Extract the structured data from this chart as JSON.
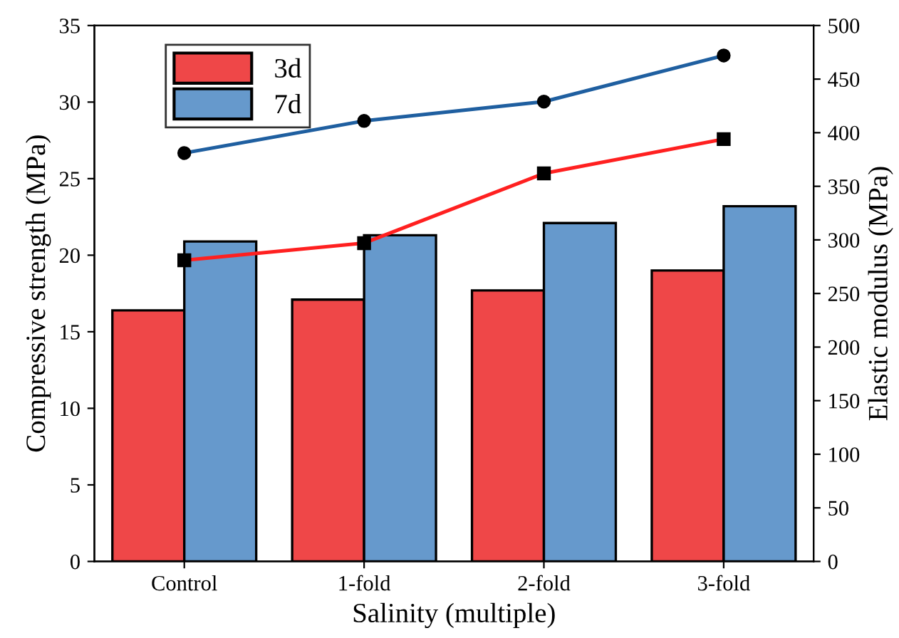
{
  "chart_data": {
    "type": "bar",
    "xlabel": "Salinity (multiple)",
    "ylabel": "Compressive strength (MPa)",
    "y2label": "Elastic modulus (MPa)",
    "categories": [
      "Control",
      "1-fold",
      "2-fold",
      "3-fold"
    ],
    "series": [
      {
        "name": "3d",
        "color": "#ef4748",
        "values": [
          16.4,
          17.1,
          17.7,
          19.0
        ]
      },
      {
        "name": "7d",
        "color": "#6699cc",
        "values": [
          20.9,
          21.3,
          22.1,
          23.2
        ]
      },
      {
        "type": "line",
        "axis": "y2",
        "color": "#ff2020",
        "marker": "square",
        "values": [
          281,
          297,
          362,
          394
        ]
      },
      {
        "type": "line",
        "axis": "y2",
        "color": "#1f5fa0",
        "marker": "circle",
        "values": [
          381,
          411,
          429,
          472
        ]
      }
    ],
    "ylim": [
      0,
      35
    ],
    "yticks": [
      0,
      5,
      10,
      15,
      20,
      25,
      30,
      35
    ],
    "y2lim": [
      0,
      500
    ],
    "y2ticks": [
      0,
      50,
      100,
      150,
      200,
      250,
      300,
      350,
      400,
      450,
      500
    ],
    "legend": "top left",
    "grid": false
  }
}
